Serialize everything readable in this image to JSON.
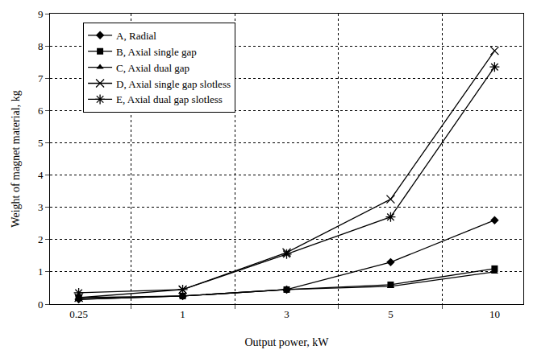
{
  "chart_data": {
    "type": "line",
    "x_label": "Output power, kW",
    "y_label": "Weight of magnet material, kg",
    "categories": [
      "0.25",
      "1",
      "3",
      "5",
      "10"
    ],
    "series": [
      {
        "name": "A, Radial",
        "color": "#000000",
        "marker": "diamond",
        "line_style": "solid",
        "values": [
          0.15,
          0.25,
          0.45,
          1.3,
          2.6
        ]
      },
      {
        "name": "B, Axial single gap",
        "color": "#000000",
        "marker": "square",
        "line_style": "solid",
        "values": [
          0.2,
          0.25,
          0.45,
          0.6,
          1.1
        ]
      },
      {
        "name": "C, Axial dual gap",
        "color": "#000000",
        "marker": "triangle-up",
        "line_style": "solid",
        "values": [
          0.15,
          0.25,
          0.45,
          0.55,
          1.0
        ]
      },
      {
        "name": "D, Axial single gap slotless",
        "color": "#000000",
        "marker": "x",
        "line_style": "solid",
        "values": [
          0.2,
          0.45,
          1.6,
          3.25,
          7.85
        ]
      },
      {
        "name": "E, Axial dual gap slotless",
        "color": "#000000",
        "marker": "asterisk",
        "line_style": "solid",
        "values": [
          0.35,
          0.45,
          1.55,
          2.7,
          7.35
        ]
      }
    ],
    "ylim": [
      0,
      9
    ],
    "yticks": [
      0,
      1,
      2,
      3,
      4,
      5,
      6,
      7,
      8,
      9
    ],
    "grid": true,
    "legend": "upper left"
  }
}
